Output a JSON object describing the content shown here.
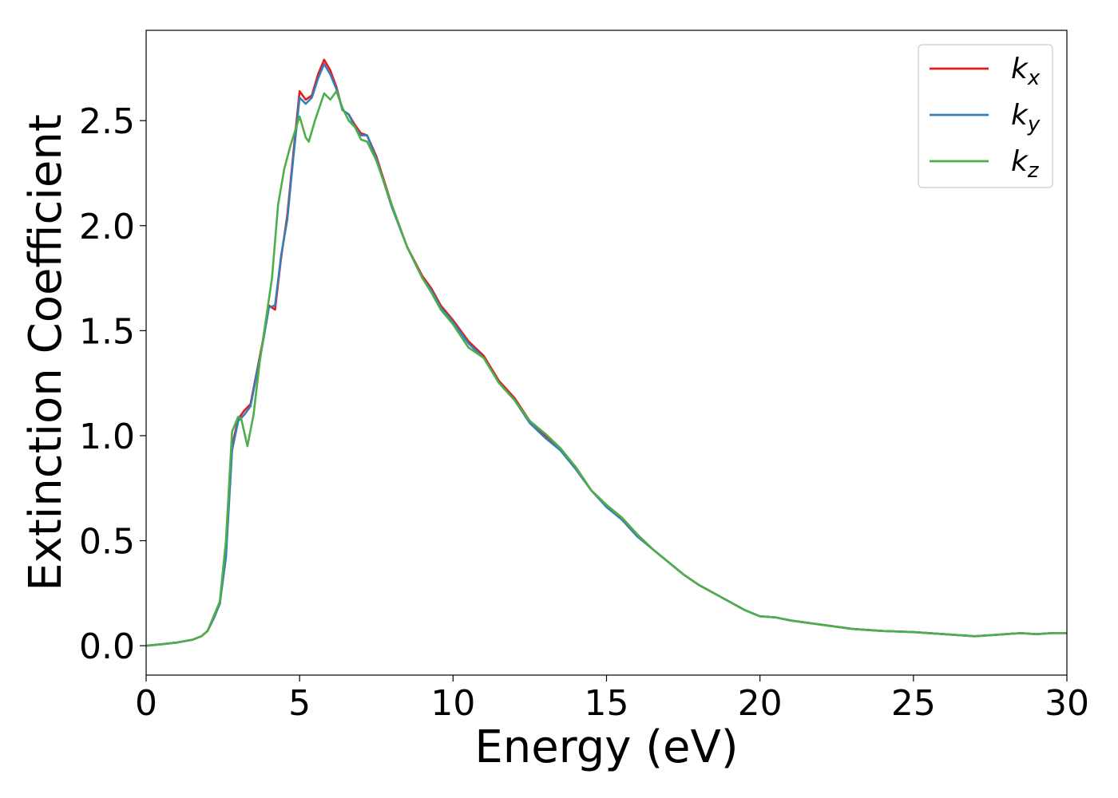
{
  "chart_data": {
    "type": "line",
    "title": "",
    "xlabel": "Energy (eV)",
    "ylabel": "Extinction Coefficient",
    "xlim": [
      0,
      30
    ],
    "ylim": [
      -0.14,
      2.93
    ],
    "xticks": [
      0,
      5,
      10,
      15,
      20,
      25,
      30
    ],
    "xtick_labels": [
      "0",
      "5",
      "10",
      "15",
      "20",
      "25",
      "30"
    ],
    "yticks": [
      0.0,
      0.5,
      1.0,
      1.5,
      2.0,
      2.5
    ],
    "ytick_labels": [
      "0.0",
      "0.5",
      "1.0",
      "1.5",
      "2.0",
      "2.5"
    ],
    "grid": false,
    "legend_position": "top-right",
    "series": [
      {
        "name": "k",
        "subscript": "x",
        "color": "#e41a1c",
        "points": [
          [
            0,
            0
          ],
          [
            0.5,
            0.007
          ],
          [
            1,
            0.015
          ],
          [
            1.5,
            0.028
          ],
          [
            1.8,
            0.045
          ],
          [
            2.0,
            0.07
          ],
          [
            2.2,
            0.13
          ],
          [
            2.4,
            0.2
          ],
          [
            2.6,
            0.45
          ],
          [
            2.8,
            0.95
          ],
          [
            3.0,
            1.08
          ],
          [
            3.2,
            1.12
          ],
          [
            3.4,
            1.15
          ],
          [
            3.6,
            1.3
          ],
          [
            3.8,
            1.45
          ],
          [
            4.0,
            1.62
          ],
          [
            4.2,
            1.6
          ],
          [
            4.4,
            1.85
          ],
          [
            4.6,
            2.05
          ],
          [
            4.8,
            2.35
          ],
          [
            5.0,
            2.64
          ],
          [
            5.2,
            2.6
          ],
          [
            5.4,
            2.62
          ],
          [
            5.6,
            2.72
          ],
          [
            5.8,
            2.79
          ],
          [
            6.0,
            2.74
          ],
          [
            6.2,
            2.66
          ],
          [
            6.4,
            2.55
          ],
          [
            6.6,
            2.53
          ],
          [
            6.8,
            2.48
          ],
          [
            7.0,
            2.44
          ],
          [
            7.2,
            2.43
          ],
          [
            7.5,
            2.33
          ],
          [
            8.0,
            2.1
          ],
          [
            8.5,
            1.9
          ],
          [
            9.0,
            1.76
          ],
          [
            9.3,
            1.7
          ],
          [
            9.6,
            1.62
          ],
          [
            10.0,
            1.55
          ],
          [
            10.5,
            1.45
          ],
          [
            11.0,
            1.38
          ],
          [
            11.5,
            1.26
          ],
          [
            12.0,
            1.18
          ],
          [
            12.5,
            1.07
          ],
          [
            13.0,
            1.0
          ],
          [
            13.5,
            0.93
          ],
          [
            14.0,
            0.85
          ],
          [
            14.5,
            0.74
          ],
          [
            15.0,
            0.67
          ],
          [
            15.5,
            0.61
          ],
          [
            16.0,
            0.53
          ],
          [
            16.5,
            0.46
          ],
          [
            17.0,
            0.4
          ],
          [
            17.5,
            0.34
          ],
          [
            18.0,
            0.29
          ],
          [
            18.5,
            0.25
          ],
          [
            19.0,
            0.21
          ],
          [
            19.5,
            0.17
          ],
          [
            20.0,
            0.14
          ],
          [
            20.5,
            0.135
          ],
          [
            21.0,
            0.12
          ],
          [
            21.5,
            0.11
          ],
          [
            22.0,
            0.1
          ],
          [
            22.5,
            0.09
          ],
          [
            23.0,
            0.08
          ],
          [
            23.5,
            0.075
          ],
          [
            24.0,
            0.07
          ],
          [
            25.0,
            0.065
          ],
          [
            26.0,
            0.055
          ],
          [
            27.0,
            0.045
          ],
          [
            27.5,
            0.05
          ],
          [
            28.0,
            0.055
          ],
          [
            28.5,
            0.06
          ],
          [
            29.0,
            0.055
          ],
          [
            29.5,
            0.06
          ],
          [
            30.0,
            0.06
          ]
        ]
      },
      {
        "name": "k",
        "subscript": "y",
        "color": "#377eb8",
        "points": [
          [
            0,
            0
          ],
          [
            0.5,
            0.007
          ],
          [
            1,
            0.015
          ],
          [
            1.5,
            0.028
          ],
          [
            1.8,
            0.045
          ],
          [
            2.0,
            0.07
          ],
          [
            2.2,
            0.13
          ],
          [
            2.4,
            0.2
          ],
          [
            2.6,
            0.42
          ],
          [
            2.8,
            0.93
          ],
          [
            3.0,
            1.07
          ],
          [
            3.2,
            1.1
          ],
          [
            3.4,
            1.14
          ],
          [
            3.6,
            1.29
          ],
          [
            3.8,
            1.44
          ],
          [
            4.0,
            1.61
          ],
          [
            4.2,
            1.62
          ],
          [
            4.4,
            1.86
          ],
          [
            4.6,
            2.03
          ],
          [
            4.8,
            2.33
          ],
          [
            5.0,
            2.61
          ],
          [
            5.2,
            2.58
          ],
          [
            5.4,
            2.61
          ],
          [
            5.6,
            2.7
          ],
          [
            5.8,
            2.77
          ],
          [
            6.0,
            2.72
          ],
          [
            6.2,
            2.65
          ],
          [
            6.4,
            2.55
          ],
          [
            6.6,
            2.53
          ],
          [
            6.8,
            2.47
          ],
          [
            7.0,
            2.43
          ],
          [
            7.2,
            2.43
          ],
          [
            7.5,
            2.32
          ],
          [
            8.0,
            2.09
          ],
          [
            8.5,
            1.9
          ],
          [
            9.0,
            1.75
          ],
          [
            9.3,
            1.69
          ],
          [
            9.6,
            1.61
          ],
          [
            10.0,
            1.54
          ],
          [
            10.5,
            1.44
          ],
          [
            11.0,
            1.37
          ],
          [
            11.5,
            1.25
          ],
          [
            12.0,
            1.17
          ],
          [
            12.5,
            1.06
          ],
          [
            13.0,
            0.99
          ],
          [
            13.5,
            0.93
          ],
          [
            14.0,
            0.84
          ],
          [
            14.5,
            0.74
          ],
          [
            15.0,
            0.66
          ],
          [
            15.5,
            0.6
          ],
          [
            16.0,
            0.52
          ],
          [
            16.5,
            0.46
          ],
          [
            17.0,
            0.4
          ],
          [
            17.5,
            0.34
          ],
          [
            18.0,
            0.29
          ],
          [
            18.5,
            0.25
          ],
          [
            19.0,
            0.21
          ],
          [
            19.5,
            0.17
          ],
          [
            20.0,
            0.14
          ],
          [
            20.5,
            0.135
          ],
          [
            21.0,
            0.12
          ],
          [
            21.5,
            0.11
          ],
          [
            22.0,
            0.1
          ],
          [
            22.5,
            0.09
          ],
          [
            23.0,
            0.08
          ],
          [
            23.5,
            0.075
          ],
          [
            24.0,
            0.07
          ],
          [
            25.0,
            0.065
          ],
          [
            26.0,
            0.055
          ],
          [
            27.0,
            0.045
          ],
          [
            27.5,
            0.05
          ],
          [
            28.0,
            0.055
          ],
          [
            28.5,
            0.06
          ],
          [
            29.0,
            0.055
          ],
          [
            29.5,
            0.06
          ],
          [
            30.0,
            0.06
          ]
        ]
      },
      {
        "name": "k",
        "subscript": "z",
        "color": "#4daf4a",
        "points": [
          [
            0,
            0
          ],
          [
            0.5,
            0.007
          ],
          [
            1,
            0.015
          ],
          [
            1.5,
            0.028
          ],
          [
            1.8,
            0.045
          ],
          [
            2.0,
            0.07
          ],
          [
            2.2,
            0.14
          ],
          [
            2.4,
            0.21
          ],
          [
            2.6,
            0.5
          ],
          [
            2.8,
            1.02
          ],
          [
            3.0,
            1.09
          ],
          [
            3.1,
            1.08
          ],
          [
            3.3,
            0.95
          ],
          [
            3.5,
            1.1
          ],
          [
            3.7,
            1.35
          ],
          [
            3.9,
            1.55
          ],
          [
            4.1,
            1.75
          ],
          [
            4.3,
            2.1
          ],
          [
            4.5,
            2.27
          ],
          [
            4.7,
            2.38
          ],
          [
            5.0,
            2.52
          ],
          [
            5.2,
            2.42
          ],
          [
            5.3,
            2.4
          ],
          [
            5.5,
            2.5
          ],
          [
            5.8,
            2.63
          ],
          [
            6.0,
            2.6
          ],
          [
            6.2,
            2.64
          ],
          [
            6.4,
            2.56
          ],
          [
            6.6,
            2.5
          ],
          [
            6.8,
            2.47
          ],
          [
            7.0,
            2.41
          ],
          [
            7.2,
            2.4
          ],
          [
            7.5,
            2.31
          ],
          [
            8.0,
            2.1
          ],
          [
            8.5,
            1.9
          ],
          [
            9.0,
            1.75
          ],
          [
            9.3,
            1.68
          ],
          [
            9.6,
            1.6
          ],
          [
            10.0,
            1.53
          ],
          [
            10.5,
            1.42
          ],
          [
            11.0,
            1.37
          ],
          [
            11.5,
            1.25
          ],
          [
            12.0,
            1.17
          ],
          [
            12.5,
            1.07
          ],
          [
            13.0,
            1.01
          ],
          [
            13.5,
            0.94
          ],
          [
            14.0,
            0.85
          ],
          [
            14.5,
            0.74
          ],
          [
            15.0,
            0.67
          ],
          [
            15.5,
            0.61
          ],
          [
            16.0,
            0.53
          ],
          [
            16.5,
            0.46
          ],
          [
            17.0,
            0.4
          ],
          [
            17.5,
            0.34
          ],
          [
            18.0,
            0.29
          ],
          [
            18.5,
            0.25
          ],
          [
            19.0,
            0.21
          ],
          [
            19.5,
            0.17
          ],
          [
            20.0,
            0.14
          ],
          [
            20.5,
            0.135
          ],
          [
            21.0,
            0.12
          ],
          [
            21.5,
            0.11
          ],
          [
            22.0,
            0.1
          ],
          [
            22.5,
            0.09
          ],
          [
            23.0,
            0.08
          ],
          [
            23.5,
            0.075
          ],
          [
            24.0,
            0.07
          ],
          [
            25.0,
            0.065
          ],
          [
            26.0,
            0.055
          ],
          [
            27.0,
            0.045
          ],
          [
            27.5,
            0.05
          ],
          [
            28.0,
            0.055
          ],
          [
            28.5,
            0.06
          ],
          [
            29.0,
            0.055
          ],
          [
            29.5,
            0.06
          ],
          [
            30.0,
            0.06
          ]
        ]
      }
    ]
  }
}
